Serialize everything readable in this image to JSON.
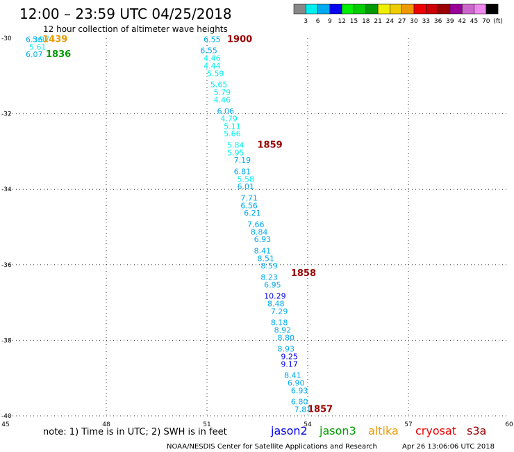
{
  "header": {
    "title": "12:00 – 23:59 UTC 04/25/2018",
    "subtitle": "12 hour collection of altimeter wave heights"
  },
  "color_scale": {
    "labels": [
      "3",
      "6",
      "9",
      "12",
      "15",
      "18",
      "21",
      "24",
      "27",
      "30",
      "33",
      "36",
      "39",
      "42",
      "45",
      "70",
      "(ft)"
    ],
    "colors": [
      "#888888",
      "#00eeee",
      "#00aaee",
      "#0000ee",
      "#00ee00",
      "#00cc00",
      "#009900",
      "#eeee00",
      "#eecc00",
      "#ee9900",
      "#ee0000",
      "#cc0000",
      "#990000",
      "#990099",
      "#cc66cc",
      "#ee88ee",
      "#000000"
    ]
  },
  "footer": {
    "note": "note: 1) Time is in UTC; 2) SWH is in feet",
    "credit": "NOAA/NESDIS Center for Satellite Applications and Research",
    "generated": "Apr 26 13:06:06 UTC 2018",
    "satellites": [
      {
        "label": "jason2",
        "color": "#0000ee"
      },
      {
        "label": "jason3",
        "color": "#009900"
      },
      {
        "label": "altika",
        "color": "#ee9900"
      },
      {
        "label": "cryosat",
        "color": "#ee0000"
      },
      {
        "label": "s3a",
        "color": "#990000"
      }
    ]
  },
  "chart_data": {
    "type": "scatter",
    "xlim": [
      45,
      60
    ],
    "ylim": [
      -40,
      -30
    ],
    "x_ticks": [
      45,
      48,
      51,
      54,
      57,
      60
    ],
    "y_ticks": [
      -30,
      -32,
      -34,
      -36,
      -38,
      -40
    ],
    "grid": "dotted",
    "points": [
      {
        "x": 50.9,
        "y": -30.1,
        "label": "6.55"
      },
      {
        "x": 50.8,
        "y": -30.4,
        "label": "6.55"
      },
      {
        "x": 50.9,
        "y": -30.6,
        "label": "4.46"
      },
      {
        "x": 50.9,
        "y": -30.8,
        "label": "4.44"
      },
      {
        "x": 51.0,
        "y": -31.0,
        "label": "5.59"
      },
      {
        "x": 51.1,
        "y": -31.3,
        "label": "5.65"
      },
      {
        "x": 51.2,
        "y": -31.5,
        "label": "5.79"
      },
      {
        "x": 51.2,
        "y": -31.7,
        "label": "4.46"
      },
      {
        "x": 51.3,
        "y": -32.0,
        "label": "6.06"
      },
      {
        "x": 51.4,
        "y": -32.2,
        "label": "4.79"
      },
      {
        "x": 51.5,
        "y": -32.4,
        "label": "5.11"
      },
      {
        "x": 51.5,
        "y": -32.6,
        "label": "5.66"
      },
      {
        "x": 51.6,
        "y": -32.9,
        "label": "5.84"
      },
      {
        "x": 51.6,
        "y": -33.1,
        "label": "5.95"
      },
      {
        "x": 51.8,
        "y": -33.3,
        "label": "7.19"
      },
      {
        "x": 51.8,
        "y": -33.6,
        "label": "6.81"
      },
      {
        "x": 51.9,
        "y": -33.8,
        "label": "5.58"
      },
      {
        "x": 51.9,
        "y": -34.0,
        "label": "6.01"
      },
      {
        "x": 52.0,
        "y": -34.3,
        "label": "7.71"
      },
      {
        "x": 52.0,
        "y": -34.5,
        "label": "6.56"
      },
      {
        "x": 52.1,
        "y": -34.7,
        "label": "6.21"
      },
      {
        "x": 52.2,
        "y": -35.0,
        "label": "7.66"
      },
      {
        "x": 52.3,
        "y": -35.2,
        "label": "8.84"
      },
      {
        "x": 52.4,
        "y": -35.4,
        "label": "6.93"
      },
      {
        "x": 52.4,
        "y": -35.7,
        "label": "8.41"
      },
      {
        "x": 52.5,
        "y": -35.9,
        "label": "8.51"
      },
      {
        "x": 52.6,
        "y": -36.1,
        "label": "8.59"
      },
      {
        "x": 52.6,
        "y": -36.4,
        "label": "8.23"
      },
      {
        "x": 52.7,
        "y": -36.6,
        "label": "6.95"
      },
      {
        "x": 52.7,
        "y": -36.9,
        "label": "10.29"
      },
      {
        "x": 52.8,
        "y": -37.1,
        "label": "8.48"
      },
      {
        "x": 52.9,
        "y": -37.3,
        "label": "7.29"
      },
      {
        "x": 52.9,
        "y": -37.6,
        "label": "8.18"
      },
      {
        "x": 53.0,
        "y": -37.8,
        "label": "8.92"
      },
      {
        "x": 53.1,
        "y": -38.0,
        "label": "8.80"
      },
      {
        "x": 53.1,
        "y": -38.3,
        "label": "8.93"
      },
      {
        "x": 53.2,
        "y": -38.5,
        "label": "9.25"
      },
      {
        "x": 53.2,
        "y": -38.7,
        "label": "9.17"
      },
      {
        "x": 53.3,
        "y": -39.0,
        "label": "8.41"
      },
      {
        "x": 53.4,
        "y": -39.2,
        "label": "6.90"
      },
      {
        "x": 53.5,
        "y": -39.4,
        "label": "6.93"
      },
      {
        "x": 53.5,
        "y": -39.7,
        "label": "6.80"
      },
      {
        "x": 53.6,
        "y": -39.9,
        "label": "7.81"
      },
      {
        "x": 45.8,
        "y": -30.1,
        "label": "5.97"
      },
      {
        "x": 45.6,
        "y": -30.1,
        "label": "6.36"
      },
      {
        "x": 45.7,
        "y": -30.3,
        "label": "5.61"
      },
      {
        "x": 45.6,
        "y": -30.5,
        "label": "6.07"
      }
    ],
    "time_labels": [
      {
        "x": 51.6,
        "y": -30.1,
        "label": "1900",
        "color": "#990000"
      },
      {
        "x": 52.5,
        "y": -32.9,
        "label": "1859",
        "color": "#990000"
      },
      {
        "x": 53.5,
        "y": -36.3,
        "label": "1858",
        "color": "#990000"
      },
      {
        "x": 54.0,
        "y": -39.9,
        "label": "1857",
        "color": "#990000"
      },
      {
        "x": 46.1,
        "y": -30.1,
        "label": "1439",
        "color": "#ee9900"
      },
      {
        "x": 46.2,
        "y": -30.5,
        "label": "1836",
        "color": "#009900"
      }
    ]
  }
}
